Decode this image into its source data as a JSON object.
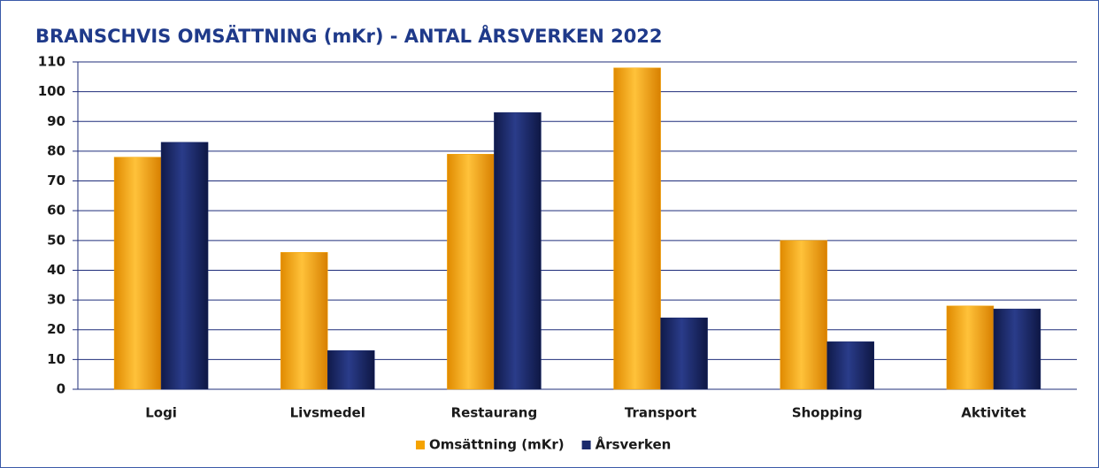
{
  "chart_data": {
    "type": "bar",
    "title": "BRANSCHVIS OMSÄTTNING (mKr) - ANTAL ÅRSVERKEN 2022",
    "categories": [
      "Logi",
      "Livsmedel",
      "Restaurang",
      "Transport",
      "Shopping",
      "Aktivitet"
    ],
    "series": [
      {
        "name": "Omsättning (mKr)",
        "color": "#f5a300",
        "values": [
          78,
          46,
          79,
          108,
          50,
          28
        ]
      },
      {
        "name": "Årsverken",
        "color": "#1a2a6c",
        "values": [
          83,
          13,
          93,
          24,
          16,
          27
        ]
      }
    ],
    "ylim": [
      0,
      110
    ],
    "yticks": [
      0,
      10,
      20,
      30,
      40,
      50,
      60,
      70,
      80,
      90,
      100,
      110
    ],
    "grid": true,
    "legend": "bottom"
  }
}
